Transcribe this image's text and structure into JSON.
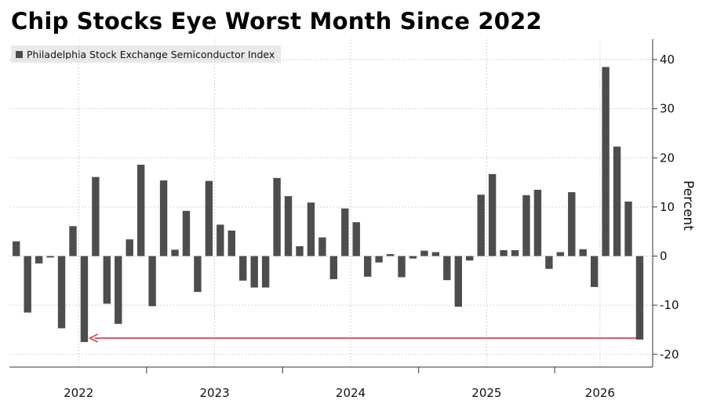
{
  "chart_data": {
    "type": "bar",
    "title": "Chip Stocks Eye Worst Month Since 2022",
    "ylabel": "Percent",
    "ylim": [
      -23,
      44
    ],
    "yticks": [
      -20,
      -10,
      0,
      10,
      20,
      30,
      40
    ],
    "grid": true,
    "legend_placement": "top-left",
    "series": [
      {
        "name": "Philadelphia Stock Exchange Semiconductor Index",
        "color": "#4d4d4d",
        "values": [
          3.0,
          -11.5,
          -1.5,
          -0.3,
          -14.7,
          6.1,
          -17.5,
          16.1,
          -9.7,
          -13.8,
          3.4,
          18.6,
          -10.2,
          15.4,
          1.3,
          9.2,
          -7.3,
          15.3,
          6.4,
          5.2,
          -5.0,
          -6.4,
          -6.4,
          15.9,
          12.2,
          2.0,
          10.9,
          3.8,
          -4.7,
          9.7,
          6.9,
          -4.2,
          -1.3,
          0.4,
          -4.3,
          -0.5,
          1.1,
          0.8,
          -4.9,
          -10.3,
          -0.9,
          12.5,
          16.7,
          1.2,
          1.2,
          12.4,
          13.5,
          -2.6,
          0.8,
          13.0,
          1.4,
          -6.3,
          38.5,
          22.3,
          11.1,
          -17.0
        ]
      }
    ],
    "x_year_labels": [
      {
        "label": "2022",
        "month_index": 5.5
      },
      {
        "label": "2023",
        "month_index": 17.5
      },
      {
        "label": "2024",
        "month_index": 29.5
      },
      {
        "label": "2025",
        "month_index": 41.5
      },
      {
        "label": "2026",
        "month_index": 51.5
      }
    ],
    "year_boundaries": [
      11.5,
      23.5,
      35.5,
      47.5
    ],
    "annotation": {
      "type": "arrow",
      "from_index": 54.7,
      "to_index": 6.5,
      "at_value": -16.7,
      "color": "#d6384b"
    }
  }
}
